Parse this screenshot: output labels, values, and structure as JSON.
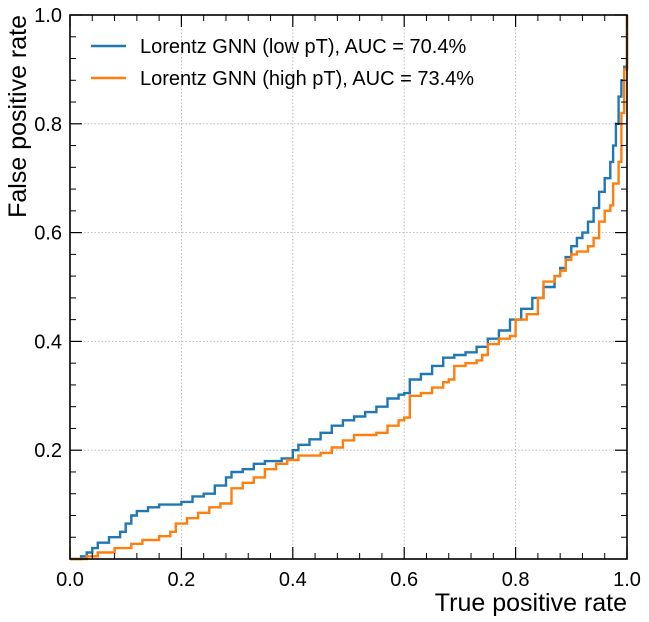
{
  "chart_data": {
    "type": "line",
    "xlabel": "True positive rate",
    "ylabel": "False positive rate",
    "xlim": [
      0.0,
      1.0
    ],
    "ylim": [
      0.0,
      1.0
    ],
    "grid": true,
    "legend_position": "top-left",
    "xticks": [
      "0.0",
      "0.2",
      "0.4",
      "0.6",
      "0.8",
      "1.0"
    ],
    "yticks": [
      "0.2",
      "0.4",
      "0.6",
      "0.8",
      "1.0"
    ],
    "series": [
      {
        "name": "Lorentz GNN (low pT), AUC = 70.4%",
        "color": "#1f77b4",
        "points": [
          [
            0.0,
            0.0
          ],
          [
            0.02,
            0.005
          ],
          [
            0.03,
            0.012
          ],
          [
            0.04,
            0.02
          ],
          [
            0.05,
            0.03
          ],
          [
            0.07,
            0.04
          ],
          [
            0.09,
            0.05
          ],
          [
            0.1,
            0.065
          ],
          [
            0.11,
            0.08
          ],
          [
            0.12,
            0.088
          ],
          [
            0.14,
            0.095
          ],
          [
            0.16,
            0.1
          ],
          [
            0.2,
            0.105
          ],
          [
            0.22,
            0.115
          ],
          [
            0.24,
            0.12
          ],
          [
            0.26,
            0.135
          ],
          [
            0.28,
            0.15
          ],
          [
            0.29,
            0.16
          ],
          [
            0.31,
            0.165
          ],
          [
            0.33,
            0.175
          ],
          [
            0.35,
            0.18
          ],
          [
            0.38,
            0.185
          ],
          [
            0.4,
            0.2
          ],
          [
            0.41,
            0.21
          ],
          [
            0.43,
            0.22
          ],
          [
            0.45,
            0.232
          ],
          [
            0.47,
            0.245
          ],
          [
            0.49,
            0.255
          ],
          [
            0.51,
            0.262
          ],
          [
            0.53,
            0.27
          ],
          [
            0.55,
            0.28
          ],
          [
            0.57,
            0.295
          ],
          [
            0.59,
            0.302
          ],
          [
            0.6,
            0.305
          ],
          [
            0.61,
            0.33
          ],
          [
            0.63,
            0.34
          ],
          [
            0.65,
            0.355
          ],
          [
            0.67,
            0.37
          ],
          [
            0.69,
            0.375
          ],
          [
            0.71,
            0.38
          ],
          [
            0.73,
            0.39
          ],
          [
            0.75,
            0.405
          ],
          [
            0.77,
            0.42
          ],
          [
            0.79,
            0.44
          ],
          [
            0.81,
            0.46
          ],
          [
            0.83,
            0.48
          ],
          [
            0.85,
            0.5
          ],
          [
            0.87,
            0.52
          ],
          [
            0.88,
            0.535
          ],
          [
            0.89,
            0.555
          ],
          [
            0.9,
            0.575
          ],
          [
            0.91,
            0.59
          ],
          [
            0.92,
            0.6
          ],
          [
            0.93,
            0.62
          ],
          [
            0.94,
            0.645
          ],
          [
            0.95,
            0.675
          ],
          [
            0.96,
            0.7
          ],
          [
            0.97,
            0.73
          ],
          [
            0.975,
            0.76
          ],
          [
            0.98,
            0.8
          ],
          [
            0.985,
            0.85
          ],
          [
            0.99,
            0.88
          ],
          [
            0.995,
            0.905
          ],
          [
            1.0,
            1.0
          ]
        ]
      },
      {
        "name": "Lorentz GNN (high pT), AUC = 73.4%",
        "color": "#ff7f0e",
        "points": [
          [
            0.0,
            0.0
          ],
          [
            0.03,
            0.005
          ],
          [
            0.05,
            0.012
          ],
          [
            0.08,
            0.02
          ],
          [
            0.11,
            0.028
          ],
          [
            0.13,
            0.035
          ],
          [
            0.16,
            0.042
          ],
          [
            0.18,
            0.05
          ],
          [
            0.19,
            0.065
          ],
          [
            0.21,
            0.075
          ],
          [
            0.23,
            0.085
          ],
          [
            0.25,
            0.095
          ],
          [
            0.27,
            0.102
          ],
          [
            0.29,
            0.13
          ],
          [
            0.31,
            0.14
          ],
          [
            0.33,
            0.15
          ],
          [
            0.35,
            0.165
          ],
          [
            0.37,
            0.175
          ],
          [
            0.39,
            0.182
          ],
          [
            0.41,
            0.19
          ],
          [
            0.43,
            0.19
          ],
          [
            0.45,
            0.195
          ],
          [
            0.47,
            0.205
          ],
          [
            0.49,
            0.218
          ],
          [
            0.51,
            0.228
          ],
          [
            0.55,
            0.232
          ],
          [
            0.57,
            0.245
          ],
          [
            0.59,
            0.255
          ],
          [
            0.6,
            0.26
          ],
          [
            0.61,
            0.3
          ],
          [
            0.63,
            0.305
          ],
          [
            0.65,
            0.315
          ],
          [
            0.67,
            0.325
          ],
          [
            0.68,
            0.33
          ],
          [
            0.69,
            0.355
          ],
          [
            0.71,
            0.36
          ],
          [
            0.73,
            0.365
          ],
          [
            0.74,
            0.375
          ],
          [
            0.75,
            0.395
          ],
          [
            0.77,
            0.405
          ],
          [
            0.79,
            0.41
          ],
          [
            0.8,
            0.44
          ],
          [
            0.82,
            0.45
          ],
          [
            0.84,
            0.48
          ],
          [
            0.85,
            0.51
          ],
          [
            0.87,
            0.52
          ],
          [
            0.88,
            0.53
          ],
          [
            0.89,
            0.55
          ],
          [
            0.9,
            0.56
          ],
          [
            0.91,
            0.565
          ],
          [
            0.93,
            0.575
          ],
          [
            0.94,
            0.59
          ],
          [
            0.95,
            0.62
          ],
          [
            0.96,
            0.64
          ],
          [
            0.97,
            0.65
          ],
          [
            0.975,
            0.69
          ],
          [
            0.985,
            0.73
          ],
          [
            0.99,
            0.82
          ],
          [
            0.995,
            0.9
          ],
          [
            1.0,
            1.0
          ]
        ]
      }
    ]
  }
}
